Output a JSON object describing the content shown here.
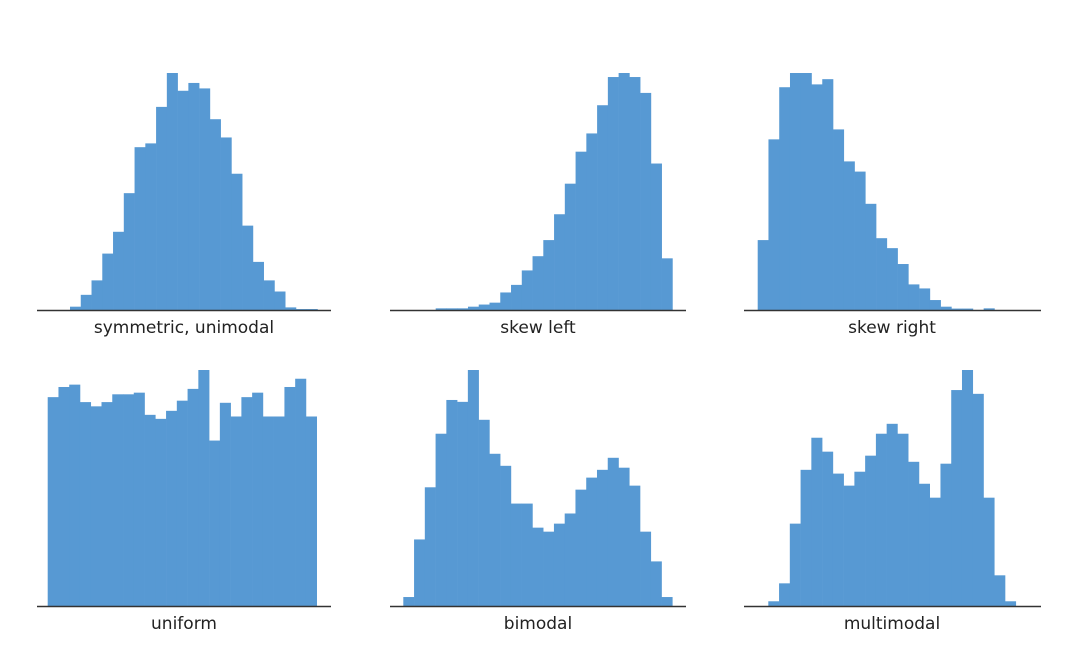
{
  "chart_data": [
    {
      "type": "bar",
      "title": "symmetric, unimodal",
      "xlabel": "symmetric, unimodal",
      "ylabel": "",
      "ylim": [
        0,
        100
      ],
      "grid": false,
      "color": "#5799d3",
      "values": [
        1.4,
        6.4,
        12.5,
        23.8,
        33,
        49.3,
        68.7,
        70.3,
        85.7,
        100,
        92.5,
        95.8,
        93.5,
        80.5,
        72.8,
        57.5,
        35.6,
        20.3,
        12.5,
        7.8,
        1.1,
        0.4,
        0.4
      ]
    },
    {
      "type": "bar",
      "title": "skew left",
      "xlabel": "skew left",
      "ylabel": "",
      "ylim": [
        0,
        100
      ],
      "grid": false,
      "color": "#5799d3",
      "values": [
        0.7,
        0.7,
        0.7,
        1.4,
        2.3,
        3.1,
        7.4,
        10.6,
        16.7,
        22.7,
        29.5,
        40.4,
        53.3,
        66.8,
        74.5,
        86.4,
        98.3,
        100,
        98.3,
        91.6,
        61.8,
        21.8
      ]
    },
    {
      "type": "bar",
      "title": "skew right",
      "xlabel": "skew right",
      "ylabel": "",
      "ylim": [
        0,
        100
      ],
      "grid": false,
      "color": "#5799d3",
      "values": [
        29.5,
        72,
        94,
        100,
        100,
        95.2,
        97.4,
        76.2,
        62.7,
        58.4,
        44.8,
        30.3,
        26.1,
        19.4,
        10.8,
        9.1,
        4.2,
        1.4,
        0.6,
        0.6,
        0,
        0.7
      ]
    },
    {
      "type": "bar",
      "title": "uniform",
      "xlabel": "uniform",
      "ylabel": "",
      "ylim": [
        0,
        100
      ],
      "grid": false,
      "color": "#5799d3",
      "values": [
        88.5,
        92.8,
        93.8,
        86.4,
        84.6,
        86.4,
        89.7,
        89.7,
        90.4,
        81,
        79.3,
        82.7,
        87,
        92,
        100,
        70.1,
        86.1,
        80.3,
        88.5,
        90.4,
        80.3,
        80.3,
        92.8,
        96.3,
        80.3
      ]
    },
    {
      "type": "bar",
      "title": "bimodal",
      "xlabel": "bimodal",
      "ylabel": "",
      "ylim": [
        0,
        100
      ],
      "grid": false,
      "color": "#5799d3",
      "values": [
        3.8,
        28.2,
        50.3,
        73,
        87.3,
        86.5,
        100,
        78.9,
        64.5,
        59.4,
        43.4,
        43.4,
        33.2,
        31.5,
        34.9,
        39.2,
        49.3,
        54.4,
        57.7,
        62.8,
        58.6,
        51,
        31.5,
        18.9,
        3.8
      ]
    },
    {
      "type": "bar",
      "title": "multimodal",
      "xlabel": "multimodal",
      "ylabel": "",
      "ylim": [
        0,
        100
      ],
      "grid": false,
      "color": "#5799d3",
      "values": [
        2,
        9.6,
        34.9,
        57.7,
        71.3,
        65.4,
        56.1,
        51,
        56.9,
        63.7,
        73,
        77.2,
        73,
        61.1,
        51.8,
        45.9,
        60.3,
        91.5,
        100,
        89.9,
        45.9,
        13,
        2
      ]
    }
  ]
}
